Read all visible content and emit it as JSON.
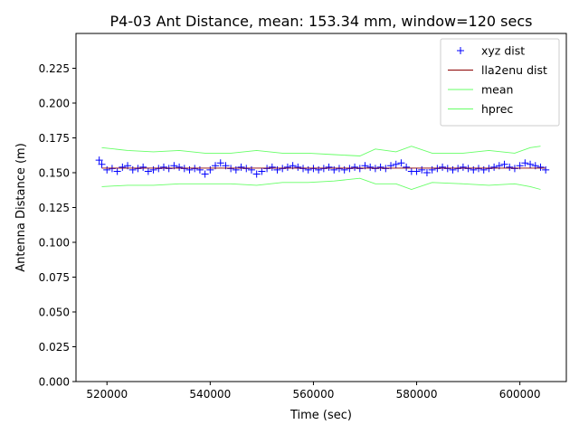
{
  "chart_data": {
    "type": "scatter",
    "title": "P4-03 Ant Distance, mean: 153.34 mm, window=120 secs",
    "xlabel": "Time (sec)",
    "ylabel": "Antenna Distance (m)",
    "xlim": [
      514000,
      609000
    ],
    "ylim": [
      0.0,
      0.25
    ],
    "xticks": [
      520000,
      540000,
      560000,
      580000,
      600000
    ],
    "xtick_labels": [
      "520000",
      "540000",
      "560000",
      "580000",
      "600000"
    ],
    "yticks": [
      0.0,
      0.025,
      0.05,
      0.075,
      0.1,
      0.125,
      0.15,
      0.175,
      0.2,
      0.225
    ],
    "ytick_labels": [
      "0.000",
      "0.025",
      "0.050",
      "0.075",
      "0.100",
      "0.125",
      "0.150",
      "0.175",
      "0.200",
      "0.225"
    ],
    "grid": false,
    "legend_position": "top-right",
    "series": [
      {
        "name": "xyz dist",
        "style": "marker-plus",
        "color": "#0000ff",
        "x": [
          518500,
          519000,
          520000,
          521000,
          522000,
          523000,
          524000,
          525000,
          526000,
          527000,
          528000,
          529000,
          530000,
          531000,
          532000,
          533000,
          534000,
          535000,
          536000,
          537000,
          538000,
          539000,
          540000,
          541000,
          542000,
          543000,
          544000,
          545000,
          546000,
          547000,
          548000,
          549000,
          550000,
          551000,
          552000,
          553000,
          554000,
          555000,
          556000,
          557000,
          558000,
          559000,
          560000,
          561000,
          562000,
          563000,
          564000,
          565000,
          566000,
          567000,
          568000,
          569000,
          570000,
          571000,
          572000,
          573000,
          574000,
          575000,
          576000,
          577000,
          578000,
          579000,
          580000,
          581000,
          582000,
          583000,
          584000,
          585000,
          586000,
          587000,
          588000,
          589000,
          590000,
          591000,
          592000,
          593000,
          594000,
          595000,
          596000,
          597000,
          598000,
          599000,
          600000,
          601000,
          602000,
          603000,
          604000,
          605000
        ],
        "y": [
          0.159,
          0.156,
          0.152,
          0.153,
          0.151,
          0.154,
          0.155,
          0.152,
          0.153,
          0.154,
          0.151,
          0.152,
          0.153,
          0.154,
          0.153,
          0.155,
          0.154,
          0.153,
          0.152,
          0.153,
          0.152,
          0.149,
          0.152,
          0.155,
          0.157,
          0.155,
          0.153,
          0.152,
          0.154,
          0.153,
          0.152,
          0.149,
          0.151,
          0.153,
          0.154,
          0.152,
          0.153,
          0.154,
          0.155,
          0.154,
          0.153,
          0.152,
          0.153,
          0.152,
          0.153,
          0.154,
          0.152,
          0.153,
          0.152,
          0.153,
          0.154,
          0.153,
          0.155,
          0.154,
          0.153,
          0.154,
          0.153,
          0.155,
          0.156,
          0.157,
          0.154,
          0.151,
          0.151,
          0.152,
          0.15,
          0.152,
          0.153,
          0.154,
          0.153,
          0.152,
          0.153,
          0.154,
          0.153,
          0.152,
          0.153,
          0.152,
          0.153,
          0.154,
          0.155,
          0.156,
          0.154,
          0.153,
          0.155,
          0.157,
          0.156,
          0.155,
          0.154,
          0.152
        ]
      },
      {
        "name": "lla2enu dist",
        "style": "line",
        "color": "#8b0000",
        "x": [
          519000,
          605000
        ],
        "y": [
          0.1533,
          0.1533
        ]
      },
      {
        "name": "mean",
        "style": "line",
        "color": "#66ff66",
        "x": [
          519000,
          524000,
          529000,
          534000,
          539000,
          544000,
          549000,
          554000,
          559000,
          564000,
          569000,
          572000,
          576000,
          579000,
          583000,
          589000,
          594000,
          599000,
          602000,
          604000
        ],
        "y": [
          0.168,
          0.166,
          0.165,
          0.166,
          0.164,
          0.164,
          0.166,
          0.164,
          0.164,
          0.163,
          0.162,
          0.167,
          0.165,
          0.169,
          0.164,
          0.164,
          0.166,
          0.164,
          0.168,
          0.169
        ]
      },
      {
        "name": "hprec",
        "style": "line",
        "color": "#66ff66",
        "x": [
          519000,
          524000,
          529000,
          534000,
          539000,
          544000,
          549000,
          554000,
          559000,
          564000,
          569000,
          572000,
          576000,
          579000,
          583000,
          589000,
          594000,
          599000,
          602000,
          604000
        ],
        "y": [
          0.14,
          0.141,
          0.141,
          0.142,
          0.142,
          0.142,
          0.141,
          0.143,
          0.143,
          0.144,
          0.146,
          0.142,
          0.142,
          0.138,
          0.143,
          0.142,
          0.141,
          0.142,
          0.14,
          0.138
        ]
      }
    ]
  }
}
